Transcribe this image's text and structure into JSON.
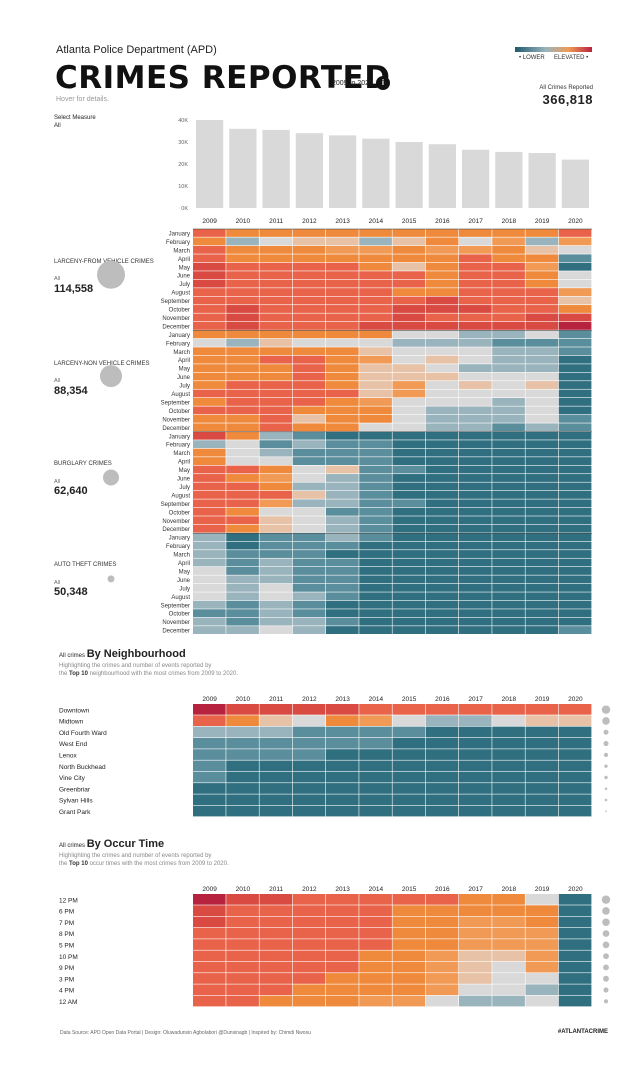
{
  "header": {
    "subtitle": "Atlanta Police Department (APD)",
    "title": "CRIMES REPORTED",
    "year_range": "2009 to 2020",
    "info_icon": "i",
    "hover_hint": "Hover for details.",
    "legend_low": "• LOWER",
    "legend_high": "ELEVATED •",
    "total_label": "All Crimes Reported",
    "total_value": "366,818",
    "measure_label": "Select Measure",
    "measure_value": "All"
  },
  "colors": {
    "scale": [
      "#1f5a6b",
      "#2f6f80",
      "#5b8e9c",
      "#9ab4bd",
      "#d9d9d9",
      "#e8c2a6",
      "#f09a55",
      "#ef8a3c",
      "#e8634a",
      "#d84a42",
      "#b7223f"
    ],
    "bar": "#d9d9d9",
    "dot": "#bdbdbd",
    "grid": "#ffffff"
  },
  "categories": [
    {
      "name": "LARCENY-FROM VEHICLE CRIMES",
      "all_label": "All",
      "total": "114,558"
    },
    {
      "name": "LARCENY-NON VEHICLE CRIMES",
      "all_label": "All",
      "total": "88,354"
    },
    {
      "name": "BURGLARY CRIMES",
      "all_label": "All",
      "total": "62,640"
    },
    {
      "name": "AUTO THEFT CRIMES",
      "all_label": "All",
      "total": "50,348"
    }
  ],
  "neighbourhood_section": {
    "prefix": "All crimes",
    "title": "By Neighbourhood",
    "desc_line1": "Highlighting the crimes and number of events reported by",
    "desc_the": "the",
    "desc_bold": "Top 10",
    "desc_rest": "neighbourhood with the most crimes from 2009 to 2020."
  },
  "occur_section": {
    "prefix": "All crimes",
    "title": "By Occur Time",
    "desc_line1": "Highlighting the crimes and number of events reported by",
    "desc_the": "the",
    "desc_bold": "Top 10",
    "desc_rest": "occur times with the most crimes from 2009 to 2020."
  },
  "footer": {
    "credits": "Data Source: APD Open Data Portal | Design: Oluwadunsin Agbolabori @Dunsinagb | Inspired by: Chimdi Nwosu",
    "hashtag": "#ATLANTACRIME"
  },
  "chart_data": [
    {
      "type": "bar",
      "title": "Crimes reported per year",
      "categories": [
        "2009",
        "2010",
        "2011",
        "2012",
        "2013",
        "2014",
        "2015",
        "2016",
        "2017",
        "2018",
        "2019",
        "2020"
      ],
      "values": [
        40000,
        36000,
        35500,
        34000,
        33000,
        31500,
        30000,
        29000,
        26500,
        25500,
        25000,
        22000
      ],
      "yticks": [
        "0K",
        "10K",
        "20K",
        "30K",
        "40K"
      ],
      "ylim": [
        0,
        40000
      ]
    },
    {
      "type": "heatmap",
      "title": "Monthly crimes by category",
      "x": [
        "2009",
        "2010",
        "2011",
        "2012",
        "2013",
        "2014",
        "2015",
        "2016",
        "2017",
        "2018",
        "2019",
        "2020"
      ],
      "months": [
        "January",
        "February",
        "March",
        "April",
        "May",
        "June",
        "July",
        "August",
        "September",
        "October",
        "November",
        "December"
      ],
      "value_scale": "0 (lower) to 10 (elevated)",
      "series": [
        {
          "name": "LARCENY-FROM VEHICLE CRIMES",
          "rows": [
            [
              8,
              7,
              7,
              7,
              7,
              7,
              7,
              7,
              7,
              7,
              7,
              8
            ],
            [
              7,
              3,
              4,
              5,
              5,
              3,
              5,
              7,
              4,
              6,
              3,
              6
            ],
            [
              8,
              7,
              7,
              7,
              6,
              6,
              7,
              6,
              6,
              7,
              5,
              4
            ],
            [
              8,
              7,
              7,
              7,
              7,
              7,
              7,
              7,
              8,
              7,
              7,
              2
            ],
            [
              9,
              8,
              8,
              8,
              8,
              7,
              5,
              7,
              8,
              8,
              6,
              1
            ],
            [
              9,
              8,
              8,
              8,
              8,
              8,
              8,
              7,
              8,
              8,
              7,
              4
            ],
            [
              9,
              8,
              8,
              8,
              8,
              8,
              8,
              7,
              8,
              8,
              7,
              4
            ],
            [
              8,
              8,
              8,
              8,
              8,
              8,
              7,
              7,
              8,
              8,
              8,
              6
            ],
            [
              8,
              8,
              8,
              8,
              8,
              8,
              8,
              9,
              8,
              8,
              8,
              5
            ],
            [
              8,
              9,
              8,
              8,
              8,
              8,
              9,
              9,
              9,
              8,
              8,
              7
            ],
            [
              8,
              9,
              8,
              8,
              8,
              8,
              9,
              8,
              8,
              8,
              9,
              9
            ],
            [
              8,
              9,
              8,
              8,
              8,
              9,
              9,
              9,
              9,
              9,
              9,
              10
            ]
          ]
        },
        {
          "name": "LARCENY-NON VEHICLE CRIMES",
          "rows": [
            [
              7,
              7,
              7,
              7,
              7,
              7,
              4,
              4,
              3,
              3,
              4,
              2
            ],
            [
              4,
              3,
              5,
              4,
              4,
              4,
              3,
              3,
              3,
              2,
              2,
              2
            ],
            [
              7,
              7,
              7,
              7,
              7,
              5,
              4,
              4,
              4,
              3,
              3,
              2
            ],
            [
              7,
              7,
              8,
              8,
              7,
              6,
              4,
              5,
              4,
              3,
              3,
              1
            ],
            [
              7,
              7,
              7,
              8,
              7,
              5,
              5,
              4,
              3,
              3,
              3,
              1
            ],
            [
              7,
              7,
              7,
              8,
              7,
              5,
              5,
              5,
              4,
              4,
              4,
              1
            ],
            [
              7,
              8,
              8,
              8,
              7,
              5,
              6,
              4,
              5,
              4,
              5,
              1
            ],
            [
              8,
              8,
              8,
              8,
              8,
              5,
              6,
              4,
              4,
              4,
              4,
              1
            ],
            [
              7,
              8,
              8,
              8,
              7,
              6,
              4,
              4,
              4,
              3,
              4,
              1
            ],
            [
              8,
              8,
              8,
              7,
              7,
              7,
              4,
              3,
              3,
              3,
              4,
              1
            ],
            [
              7,
              7,
              8,
              5,
              7,
              7,
              4,
              3,
              3,
              3,
              4,
              2
            ],
            [
              7,
              7,
              8,
              7,
              7,
              4,
              4,
              3,
              3,
              2,
              3,
              2
            ]
          ]
        },
        {
          "name": "BURGLARY CRIMES",
          "rows": [
            [
              9,
              7,
              3,
              2,
              1,
              1,
              1,
              1,
              1,
              1,
              1,
              1
            ],
            [
              3,
              4,
              2,
              3,
              2,
              2,
              1,
              1,
              1,
              1,
              1,
              1
            ],
            [
              7,
              4,
              3,
              2,
              2,
              2,
              1,
              1,
              1,
              1,
              1,
              1
            ],
            [
              7,
              4,
              4,
              2,
              2,
              2,
              1,
              1,
              1,
              1,
              1,
              1
            ],
            [
              8,
              8,
              7,
              4,
              5,
              2,
              2,
              1,
              1,
              1,
              1,
              1
            ],
            [
              8,
              7,
              6,
              4,
              3,
              2,
              1,
              1,
              1,
              1,
              1,
              1
            ],
            [
              8,
              8,
              7,
              3,
              3,
              2,
              1,
              1,
              1,
              1,
              1,
              1
            ],
            [
              8,
              8,
              8,
              5,
              3,
              2,
              1,
              1,
              1,
              1,
              1,
              1
            ],
            [
              8,
              8,
              6,
              3,
              3,
              2,
              2,
              1,
              1,
              1,
              1,
              1
            ],
            [
              8,
              7,
              4,
              4,
              2,
              2,
              1,
              1,
              1,
              1,
              1,
              1
            ],
            [
              8,
              8,
              5,
              4,
              3,
              2,
              1,
              1,
              1,
              1,
              1,
              1
            ],
            [
              8,
              7,
              5,
              4,
              3,
              2,
              1,
              1,
              1,
              1,
              1,
              1
            ]
          ]
        },
        {
          "name": "AUTO THEFT CRIMES",
          "rows": [
            [
              3,
              1,
              2,
              2,
              3,
              2,
              1,
              1,
              1,
              1,
              1,
              1
            ],
            [
              3,
              1,
              2,
              2,
              2,
              1,
              1,
              1,
              1,
              1,
              1,
              1
            ],
            [
              3,
              2,
              2,
              2,
              1,
              1,
              1,
              1,
              1,
              1,
              1,
              1
            ],
            [
              3,
              2,
              3,
              2,
              2,
              1,
              1,
              1,
              1,
              1,
              1,
              1
            ],
            [
              4,
              2,
              3,
              2,
              2,
              1,
              1,
              1,
              1,
              1,
              1,
              1
            ],
            [
              4,
              3,
              3,
              2,
              2,
              1,
              1,
              1,
              1,
              1,
              1,
              1
            ],
            [
              4,
              3,
              4,
              2,
              2,
              1,
              1,
              1,
              1,
              1,
              1,
              1
            ],
            [
              4,
              3,
              4,
              3,
              2,
              1,
              1,
              1,
              1,
              1,
              1,
              1
            ],
            [
              3,
              2,
              3,
              2,
              1,
              1,
              1,
              1,
              1,
              1,
              1,
              1
            ],
            [
              2,
              2,
              3,
              2,
              1,
              1,
              1,
              1,
              1,
              1,
              1,
              1
            ],
            [
              3,
              2,
              3,
              3,
              2,
              1,
              1,
              1,
              1,
              1,
              1,
              1
            ],
            [
              3,
              3,
              4,
              3,
              1,
              1,
              1,
              1,
              1,
              1,
              1,
              2
            ]
          ]
        }
      ]
    },
    {
      "type": "heatmap",
      "title": "All crimes By Neighbourhood",
      "x": [
        "2009",
        "2010",
        "2011",
        "2012",
        "2013",
        "2014",
        "2015",
        "2016",
        "2017",
        "2018",
        "2019",
        "2020"
      ],
      "y": [
        "Downtown",
        "Midtown",
        "Old Fourth Ward",
        "West End",
        "Lenox",
        "North Buckhead",
        "Vine City",
        "Greenbriar",
        "Sylvan Hills",
        "Grant Park"
      ],
      "totals_rank": [
        10,
        9,
        6,
        6,
        5,
        4,
        4,
        3,
        3,
        2
      ],
      "value_scale": "0 (lower) to 10 (elevated)",
      "values": [
        [
          10,
          9,
          9,
          9,
          9,
          8,
          8,
          8,
          8,
          8,
          8,
          8
        ],
        [
          8,
          7,
          5,
          4,
          7,
          6,
          4,
          3,
          3,
          4,
          5,
          5
        ],
        [
          3,
          3,
          3,
          2,
          2,
          2,
          2,
          1,
          1,
          1,
          1,
          1
        ],
        [
          2,
          2,
          2,
          2,
          2,
          2,
          1,
          1,
          1,
          1,
          1,
          1
        ],
        [
          2,
          2,
          2,
          2,
          1,
          1,
          1,
          1,
          1,
          1,
          1,
          1
        ],
        [
          2,
          1,
          1,
          1,
          1,
          1,
          1,
          1,
          1,
          1,
          1,
          1
        ],
        [
          2,
          1,
          1,
          1,
          1,
          1,
          1,
          1,
          1,
          1,
          1,
          1
        ],
        [
          1,
          1,
          1,
          1,
          1,
          1,
          1,
          1,
          1,
          1,
          1,
          1
        ],
        [
          1,
          1,
          1,
          1,
          1,
          1,
          1,
          1,
          1,
          1,
          1,
          1
        ],
        [
          1,
          1,
          1,
          1,
          1,
          1,
          1,
          1,
          1,
          1,
          1,
          1
        ]
      ]
    },
    {
      "type": "heatmap",
      "title": "All crimes By Occur Time",
      "x": [
        "2009",
        "2010",
        "2011",
        "2012",
        "2013",
        "2014",
        "2015",
        "2016",
        "2017",
        "2018",
        "2019",
        "2020"
      ],
      "y": [
        "12 PM",
        "6 PM",
        "7 PM",
        "8 PM",
        "5 PM",
        "10 PM",
        "9 PM",
        "3 PM",
        "4 PM",
        "12 AM"
      ],
      "totals_rank": [
        10,
        9,
        9,
        8,
        8,
        7,
        7,
        7,
        6,
        5
      ],
      "value_scale": "0 (lower) to 10 (elevated)",
      "values": [
        [
          10,
          9,
          9,
          8,
          8,
          8,
          8,
          8,
          7,
          7,
          4,
          1
        ],
        [
          9,
          8,
          8,
          8,
          8,
          8,
          7,
          7,
          7,
          7,
          7,
          1
        ],
        [
          9,
          8,
          8,
          8,
          8,
          8,
          7,
          7,
          6,
          6,
          7,
          1
        ],
        [
          8,
          8,
          8,
          8,
          8,
          8,
          7,
          7,
          6,
          6,
          6,
          1
        ],
        [
          8,
          8,
          8,
          8,
          8,
          8,
          7,
          7,
          6,
          6,
          6,
          1
        ],
        [
          8,
          8,
          8,
          8,
          8,
          7,
          7,
          6,
          5,
          5,
          6,
          1
        ],
        [
          8,
          8,
          8,
          8,
          8,
          7,
          7,
          6,
          5,
          4,
          6,
          1
        ],
        [
          8,
          8,
          8,
          8,
          7,
          7,
          7,
          6,
          5,
          4,
          4,
          1
        ],
        [
          8,
          8,
          8,
          7,
          7,
          7,
          7,
          6,
          4,
          4,
          3,
          1
        ],
        [
          8,
          8,
          7,
          7,
          7,
          6,
          6,
          4,
          3,
          3,
          4,
          1
        ]
      ]
    }
  ]
}
